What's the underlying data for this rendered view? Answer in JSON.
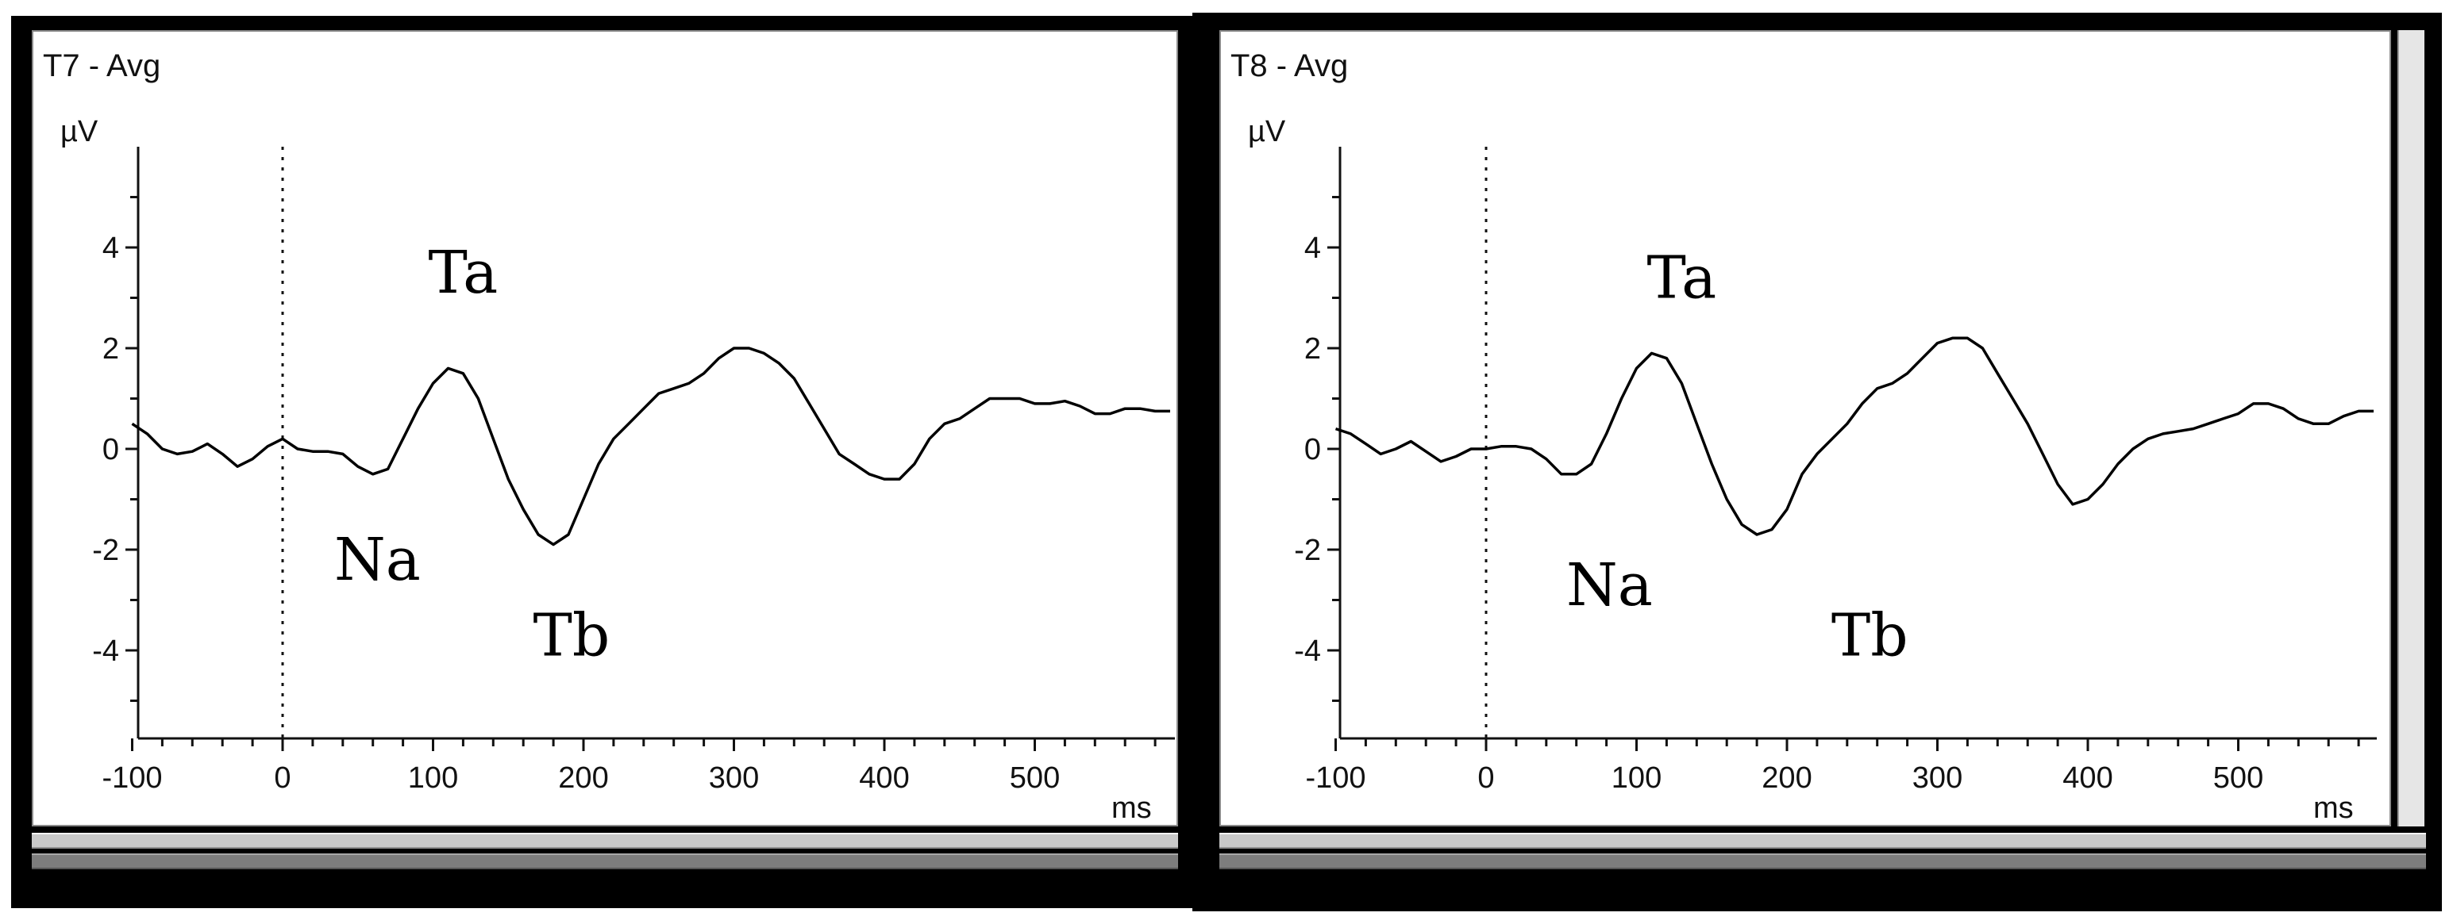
{
  "chart_data": [
    {
      "type": "line",
      "title": "T7 - Avg",
      "ylabel": "µV",
      "xlabel": "ms",
      "xlim": [
        -100,
        590
      ],
      "ylim": [
        -5.8,
        6.0
      ],
      "x_ticks": [
        -100,
        0,
        100,
        200,
        300,
        400,
        500
      ],
      "y_ticks": [
        4,
        2,
        0,
        -2,
        -4
      ],
      "stimulus_marker_x": 0,
      "grid": false,
      "annotations": [
        {
          "text": "Ta",
          "x": 120,
          "y": 3.1
        },
        {
          "text": "Na",
          "x": 63,
          "y": -2.6
        },
        {
          "text": "Tb",
          "x": 192,
          "y": -4.1
        }
      ],
      "series": [
        {
          "x": [
            -100,
            -90,
            -80,
            -70,
            -60,
            -50,
            -40,
            -30,
            -20,
            -10,
            0,
            10,
            20,
            30,
            40,
            50,
            60,
            70,
            80,
            90,
            100,
            110,
            120,
            130,
            140,
            150,
            160,
            170,
            180,
            190,
            200,
            210,
            220,
            230,
            240,
            250,
            260,
            270,
            280,
            290,
            300,
            310,
            320,
            330,
            340,
            350,
            360,
            370,
            380,
            390,
            400,
            410,
            420,
            430,
            440,
            450,
            460,
            470,
            480,
            490,
            500,
            510,
            520,
            530,
            540,
            550,
            560,
            570,
            580,
            590
          ],
          "values": [
            0.5,
            0.3,
            0.0,
            -0.1,
            -0.05,
            0.1,
            -0.1,
            -0.35,
            -0.2,
            0.05,
            0.2,
            0.0,
            -0.05,
            -0.05,
            -0.1,
            -0.35,
            -0.5,
            -0.4,
            0.2,
            0.8,
            1.3,
            1.6,
            1.5,
            1.0,
            0.2,
            -0.6,
            -1.2,
            -1.7,
            -1.9,
            -1.7,
            -1.0,
            -0.3,
            0.2,
            0.5,
            0.8,
            1.1,
            1.2,
            1.3,
            1.5,
            1.8,
            2.0,
            2.0,
            1.9,
            1.7,
            1.4,
            0.9,
            0.4,
            -0.1,
            -0.3,
            -0.5,
            -0.6,
            -0.6,
            -0.3,
            0.2,
            0.5,
            0.6,
            0.8,
            1.0,
            1.0,
            1.0,
            0.9,
            0.9,
            0.95,
            0.85,
            0.7,
            0.7,
            0.8,
            0.8,
            0.75,
            0.75
          ]
        }
      ]
    },
    {
      "type": "line",
      "title": "T8 - Avg",
      "ylabel": "µV",
      "xlabel": "ms",
      "xlim": [
        -100,
        590
      ],
      "ylim": [
        -5.8,
        6.0
      ],
      "x_ticks": [
        -100,
        0,
        100,
        200,
        300,
        400,
        500
      ],
      "y_ticks": [
        4,
        2,
        0,
        -2,
        -4
      ],
      "stimulus_marker_x": 0,
      "grid": false,
      "annotations": [
        {
          "text": "Ta",
          "x": 130,
          "y": 3.0
        },
        {
          "text": "Na",
          "x": 82,
          "y": -3.1
        },
        {
          "text": "Tb",
          "x": 255,
          "y": -4.1
        }
      ],
      "series": [
        {
          "x": [
            -100,
            -90,
            -80,
            -70,
            -60,
            -50,
            -40,
            -30,
            -20,
            -10,
            0,
            10,
            20,
            30,
            40,
            50,
            60,
            70,
            80,
            90,
            100,
            110,
            120,
            130,
            140,
            150,
            160,
            170,
            180,
            190,
            200,
            210,
            220,
            230,
            240,
            250,
            260,
            270,
            280,
            290,
            300,
            310,
            320,
            330,
            340,
            350,
            360,
            370,
            380,
            390,
            400,
            410,
            420,
            430,
            440,
            450,
            460,
            470,
            480,
            490,
            500,
            510,
            520,
            530,
            540,
            550,
            560,
            570,
            580,
            590
          ],
          "values": [
            0.4,
            0.3,
            0.1,
            -0.1,
            0.0,
            0.15,
            -0.05,
            -0.25,
            -0.15,
            0.0,
            0.0,
            0.05,
            0.05,
            0.0,
            -0.2,
            -0.5,
            -0.5,
            -0.3,
            0.3,
            1.0,
            1.6,
            1.9,
            1.8,
            1.3,
            0.5,
            -0.3,
            -1.0,
            -1.5,
            -1.7,
            -1.6,
            -1.2,
            -0.5,
            -0.1,
            0.2,
            0.5,
            0.9,
            1.2,
            1.3,
            1.5,
            1.8,
            2.1,
            2.2,
            2.2,
            2.0,
            1.5,
            1.0,
            0.5,
            -0.1,
            -0.7,
            -1.1,
            -1.0,
            -0.7,
            -0.3,
            0.0,
            0.2,
            0.3,
            0.35,
            0.4,
            0.5,
            0.6,
            0.7,
            0.9,
            0.9,
            0.8,
            0.6,
            0.5,
            0.5,
            0.65,
            0.75,
            0.75
          ]
        }
      ]
    }
  ]
}
